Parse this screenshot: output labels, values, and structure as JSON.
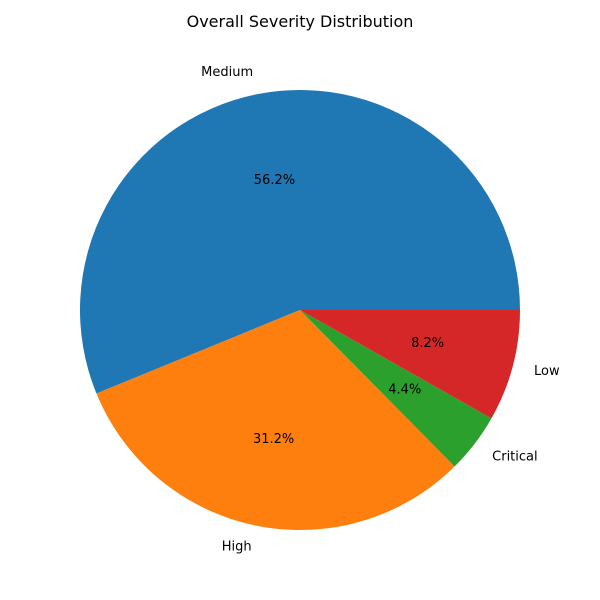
{
  "chart_data": {
    "type": "pie",
    "title": "Overall Severity Distribution",
    "categories": [
      "Medium",
      "High",
      "Critical",
      "Low"
    ],
    "values": [
      56.2,
      31.2,
      4.4,
      8.2
    ],
    "value_labels": [
      "56.2%",
      "31.2%",
      "4.4%",
      "8.2%"
    ],
    "colors": [
      "#1f77b4",
      "#ff7f0e",
      "#2ca02c",
      "#d62728"
    ],
    "start_angle_deg": 0,
    "direction": "counterclockwise",
    "legend": "none"
  }
}
